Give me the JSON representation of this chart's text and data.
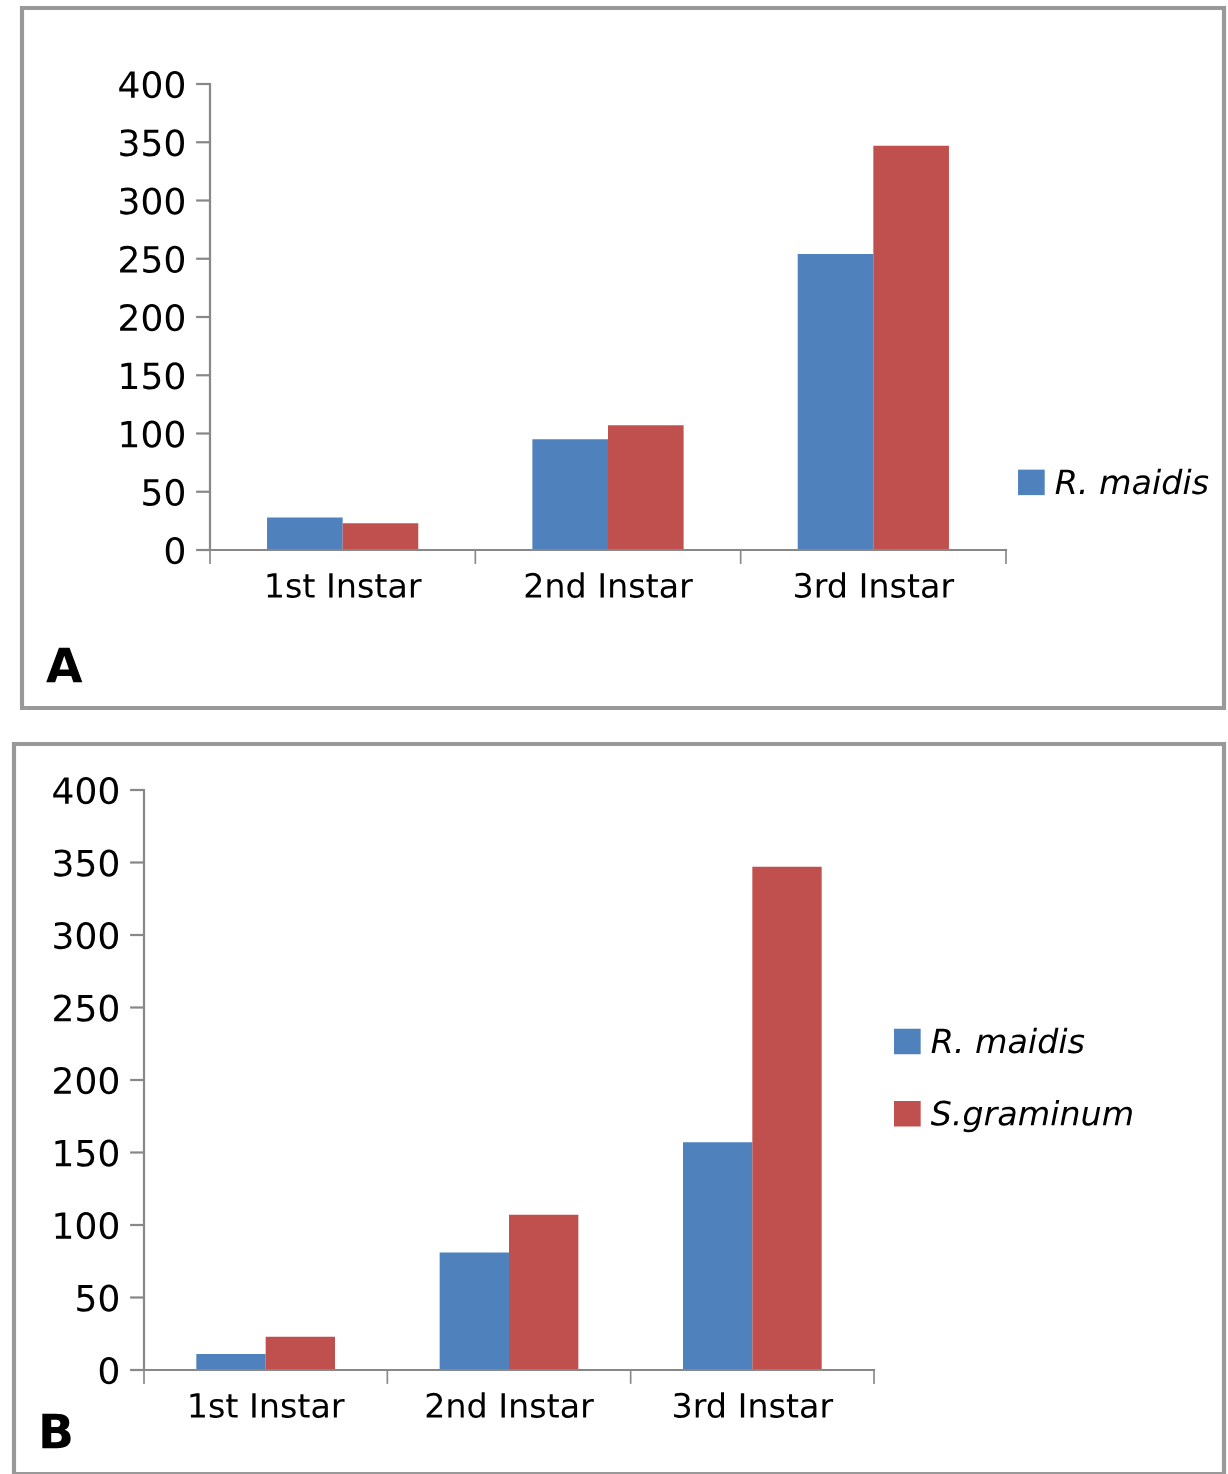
{
  "chart_data": [
    {
      "type": "bar",
      "categories": [
        "1st Instar",
        "2nd Instar",
        "3rd Instar"
      ],
      "series": [
        {
          "name": "R. maidis",
          "color": "#4f81bd",
          "values": [
            28,
            95,
            254
          ]
        },
        {
          "color": "#c0504d",
          "values": [
            23,
            107,
            347
          ]
        }
      ],
      "ylim": [
        0,
        400
      ],
      "yticks": [
        0,
        50,
        100,
        150,
        200,
        250,
        300,
        350,
        400
      ],
      "grid": false,
      "legend": "right",
      "annotations": [
        "A"
      ]
    },
    {
      "type": "bar",
      "categories": [
        "1st Instar",
        "2nd Instar",
        "3rd Instar"
      ],
      "series": [
        {
          "name": "R. maidis",
          "color": "#4f81bd",
          "values": [
            11,
            81,
            157
          ]
        },
        {
          "name": "S.graminum",
          "color": "#c0504d",
          "values": [
            23,
            107,
            347
          ]
        }
      ],
      "ylim": [
        0,
        400
      ],
      "yticks": [
        0,
        50,
        100,
        150,
        200,
        250,
        300,
        350,
        400
      ],
      "grid": false,
      "legend": "right",
      "annotations": [
        "B"
      ]
    }
  ]
}
